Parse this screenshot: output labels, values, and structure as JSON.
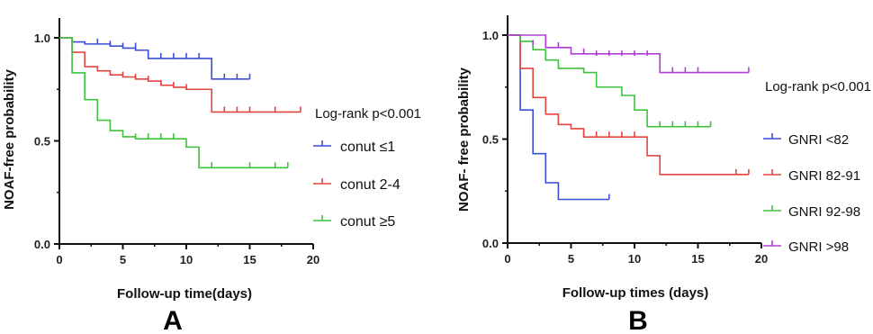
{
  "chart_data": [
    {
      "panel": "A",
      "type": "line",
      "step": true,
      "xlabel": "Follow-up time(days)",
      "ylabel": "NOAF-free probability",
      "xlim": [
        0,
        20
      ],
      "ylim": [
        0,
        1.0
      ],
      "xticks": [
        "0",
        "5",
        "10",
        "15",
        "20"
      ],
      "yticks": [
        "0.0",
        "0.5",
        "1.0"
      ],
      "grid": false,
      "legend_position": "right",
      "annotation": "Log-rank  p<0.001",
      "series": [
        {
          "name": "conut ≤1",
          "color": "#3a4fd6",
          "x": [
            0,
            1,
            2,
            3,
            4,
            5,
            6,
            7,
            12,
            15
          ],
          "y": [
            1.0,
            0.98,
            0.97,
            0.97,
            0.96,
            0.95,
            0.94,
            0.9,
            0.8,
            0.8
          ],
          "censor_x": [
            3,
            4,
            5,
            6,
            8,
            9,
            10,
            11,
            13,
            14,
            15
          ],
          "censor_y": [
            0.97,
            0.96,
            0.95,
            0.95,
            0.9,
            0.9,
            0.9,
            0.9,
            0.8,
            0.8,
            0.8
          ]
        },
        {
          "name": "conut 2-4",
          "color": "#e2453e",
          "x": [
            0,
            1,
            2,
            3,
            4,
            5,
            6,
            7,
            8,
            9,
            10,
            11,
            12,
            19
          ],
          "y": [
            1.0,
            0.93,
            0.86,
            0.84,
            0.82,
            0.81,
            0.8,
            0.79,
            0.77,
            0.76,
            0.75,
            0.75,
            0.64,
            0.64
          ],
          "censor_x": [
            5,
            6,
            7,
            8,
            9,
            10,
            13,
            14,
            15,
            17,
            19
          ],
          "censor_y": [
            0.81,
            0.8,
            0.79,
            0.77,
            0.76,
            0.75,
            0.64,
            0.64,
            0.64,
            0.64,
            0.64
          ]
        },
        {
          "name": "conut ≥5",
          "color": "#3ec13e",
          "x": [
            0,
            1,
            2,
            3,
            4,
            5,
            6,
            10,
            11,
            18
          ],
          "y": [
            1.0,
            0.83,
            0.7,
            0.6,
            0.55,
            0.52,
            0.51,
            0.47,
            0.37,
            0.37
          ],
          "censor_x": [
            6,
            7,
            8,
            9,
            12,
            15,
            17,
            18
          ],
          "censor_y": [
            0.51,
            0.51,
            0.51,
            0.51,
            0.37,
            0.37,
            0.37,
            0.37
          ]
        }
      ]
    },
    {
      "panel": "B",
      "type": "line",
      "step": true,
      "xlabel": "Follow-up times (days)",
      "ylabel": "NOAF- free probability",
      "xlim": [
        0,
        20
      ],
      "ylim": [
        0,
        1.0
      ],
      "xticks": [
        "0",
        "5",
        "10",
        "15",
        "20"
      ],
      "yticks": [
        "0.0",
        "0.5",
        "1.0"
      ],
      "grid": false,
      "legend_position": "right",
      "annotation": "Log-rank p<0.001",
      "series": [
        {
          "name": "GNRI <82",
          "color": "#3a4fd6",
          "x": [
            0,
            1,
            2,
            3,
            4,
            8
          ],
          "y": [
            1.0,
            0.64,
            0.43,
            0.29,
            0.21,
            0.21
          ],
          "censor_x": [
            8
          ],
          "censor_y": [
            0.21
          ]
        },
        {
          "name": "GNRI 82-91",
          "color": "#e2453e",
          "x": [
            0,
            1,
            2,
            3,
            4,
            5,
            6,
            11,
            12,
            19
          ],
          "y": [
            1.0,
            0.84,
            0.7,
            0.62,
            0.57,
            0.55,
            0.51,
            0.42,
            0.33,
            0.33
          ],
          "censor_x": [
            6,
            7,
            8,
            9,
            10,
            18,
            19
          ],
          "censor_y": [
            0.51,
            0.51,
            0.51,
            0.51,
            0.51,
            0.33,
            0.33
          ]
        },
        {
          "name": "GNRI 92-98",
          "color": "#3ec13e",
          "x": [
            0,
            1,
            2,
            3,
            4,
            6,
            7,
            9,
            10,
            11,
            16
          ],
          "y": [
            1.0,
            0.97,
            0.93,
            0.88,
            0.84,
            0.82,
            0.75,
            0.71,
            0.64,
            0.56,
            0.56
          ],
          "censor_x": [
            12,
            13,
            14,
            15,
            16
          ],
          "censor_y": [
            0.56,
            0.56,
            0.56,
            0.56,
            0.56
          ]
        },
        {
          "name": "GNRI >98",
          "color": "#b03ed6",
          "x": [
            0,
            3,
            5,
            12,
            19
          ],
          "y": [
            1.0,
            0.94,
            0.91,
            0.82,
            0.82
          ],
          "censor_x": [
            2,
            3,
            4,
            6,
            7,
            8,
            9,
            10,
            11,
            13,
            14,
            15,
            19
          ],
          "censor_y": [
            0.95,
            0.94,
            0.94,
            0.91,
            0.9,
            0.9,
            0.9,
            0.9,
            0.9,
            0.82,
            0.82,
            0.82,
            0.82
          ]
        }
      ]
    }
  ],
  "panel_labels": [
    "A",
    "B"
  ]
}
